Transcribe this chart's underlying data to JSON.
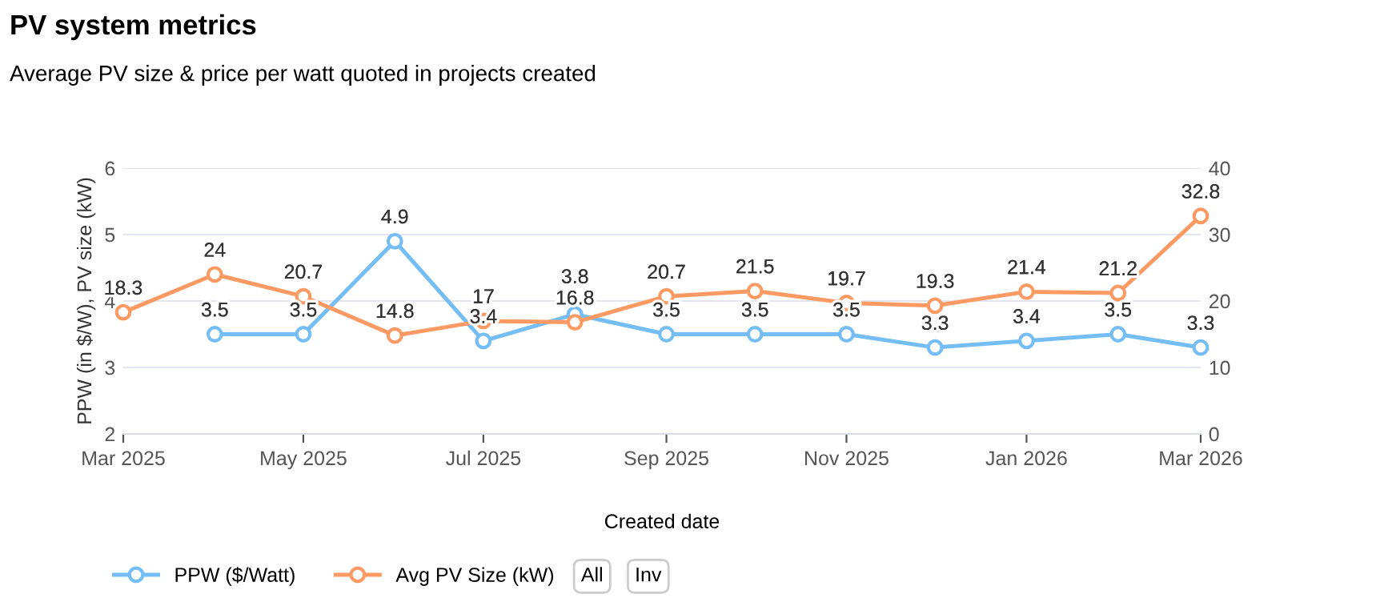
{
  "chart_data": {
    "type": "line",
    "title": "PV system metrics",
    "subtitle": "Average PV size & price per watt quoted in projects created",
    "xlabel": "Created date",
    "ylabel": "PPW (in $/W), PV size (kW)",
    "x": [
      "2025-03-01",
      "2025-04-01",
      "2025-05-01",
      "2025-06-01",
      "2025-07-01",
      "2025-08-01",
      "2025-09-01",
      "2025-10-01",
      "2025-11-01",
      "2025-12-01",
      "2026-01-01",
      "2026-02-01",
      "2026-03-01"
    ],
    "series": [
      {
        "name": "PPW ($/Watt)",
        "color": "#74bdf5",
        "values": [
          null,
          3.5,
          3.5,
          4.9,
          3.4,
          3.8,
          3.5,
          3.5,
          3.5,
          3.3,
          3.4,
          3.5,
          3.3
        ]
      },
      {
        "name": "Avg PV Size (kW)",
        "color": "#fd9a63",
        "axis": "y2",
        "values": [
          18.3,
          24,
          20.7,
          14.8,
          17,
          16.8,
          20.7,
          21.5,
          19.7,
          19.3,
          21.4,
          21.2,
          32.8
        ]
      }
    ],
    "xlim": [
      "2025-03-01",
      "2026-03-01"
    ],
    "xticks": [
      {
        "value": "2025-03-01",
        "label": "Mar 2025"
      },
      {
        "value": "2025-05-01",
        "label": "May 2025"
      },
      {
        "value": "2025-07-01",
        "label": "Jul 2025"
      },
      {
        "value": "2025-09-01",
        "label": "Sep 2025"
      },
      {
        "value": "2025-11-01",
        "label": "Nov 2025"
      },
      {
        "value": "2026-01-01",
        "label": "Jan 2026"
      },
      {
        "value": "2026-03-01",
        "label": "Mar 2026"
      }
    ],
    "ylim": [
      2,
      6
    ],
    "yticks": [
      2,
      3,
      4,
      5,
      6
    ],
    "y2lim": [
      0,
      40
    ],
    "y2ticks": [
      0,
      10,
      20,
      30,
      40
    ],
    "grid": "y",
    "legend": "bottom left",
    "marker": "circle",
    "line_style": "solid",
    "data_labels": true,
    "annotations": [
      "All",
      "Inv"
    ]
  }
}
